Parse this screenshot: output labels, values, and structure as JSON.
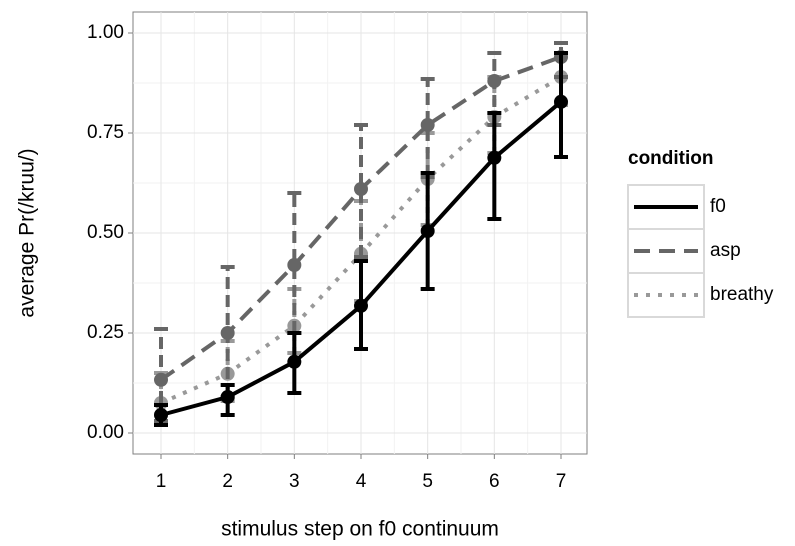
{
  "chart_data": {
    "type": "line",
    "x_label": "stimulus step on f0 continuum",
    "y_label": "average Pr(/kruu/)",
    "x": [
      1,
      2,
      3,
      4,
      5,
      6,
      7
    ],
    "xlim": [
      0.58,
      7.39
    ],
    "xticks": [
      1,
      2,
      3,
      4,
      5,
      6,
      7
    ],
    "ylim": [
      -0.0525,
      1.0525
    ],
    "yticks": [
      {
        "value": 0,
        "label": "0.00"
      },
      {
        "value": 0.25,
        "label": "0.25"
      },
      {
        "value": 0.5,
        "label": "0.50"
      },
      {
        "value": 0.75,
        "label": "0.75"
      },
      {
        "value": 1,
        "label": "1.00"
      }
    ],
    "grid": true,
    "legend_title": "condition",
    "legend_position": "right",
    "series": [
      {
        "name": "f0",
        "color": "#000000",
        "linestyle": "solid",
        "values": [
          0.045,
          0.09,
          0.178,
          0.318,
          0.505,
          0.688,
          0.828
        ],
        "lower": [
          0.02,
          0.045,
          0.1,
          0.21,
          0.36,
          0.535,
          0.69
        ],
        "upper": [
          0.07,
          0.12,
          0.25,
          0.43,
          0.65,
          0.8,
          0.95
        ]
      },
      {
        "name": "asp",
        "color": "#666666",
        "linestyle": "dashed",
        "values": [
          0.133,
          0.25,
          0.42,
          0.61,
          0.77,
          0.88,
          0.94
        ],
        "lower": [
          0.03,
          0.09,
          0.25,
          0.44,
          0.64,
          0.77,
          0.89
        ],
        "upper": [
          0.26,
          0.415,
          0.6,
          0.77,
          0.885,
          0.95,
          0.975
        ]
      },
      {
        "name": "breathy",
        "color": "#999999",
        "linestyle": "dotted",
        "values": [
          0.075,
          0.148,
          0.268,
          0.448,
          0.635,
          0.79,
          0.89
        ],
        "lower": [
          0.02,
          0.08,
          0.2,
          0.33,
          0.52,
          0.7,
          0.82
        ],
        "upper": [
          0.15,
          0.23,
          0.36,
          0.58,
          0.75,
          0.89,
          0.95
        ]
      }
    ]
  }
}
